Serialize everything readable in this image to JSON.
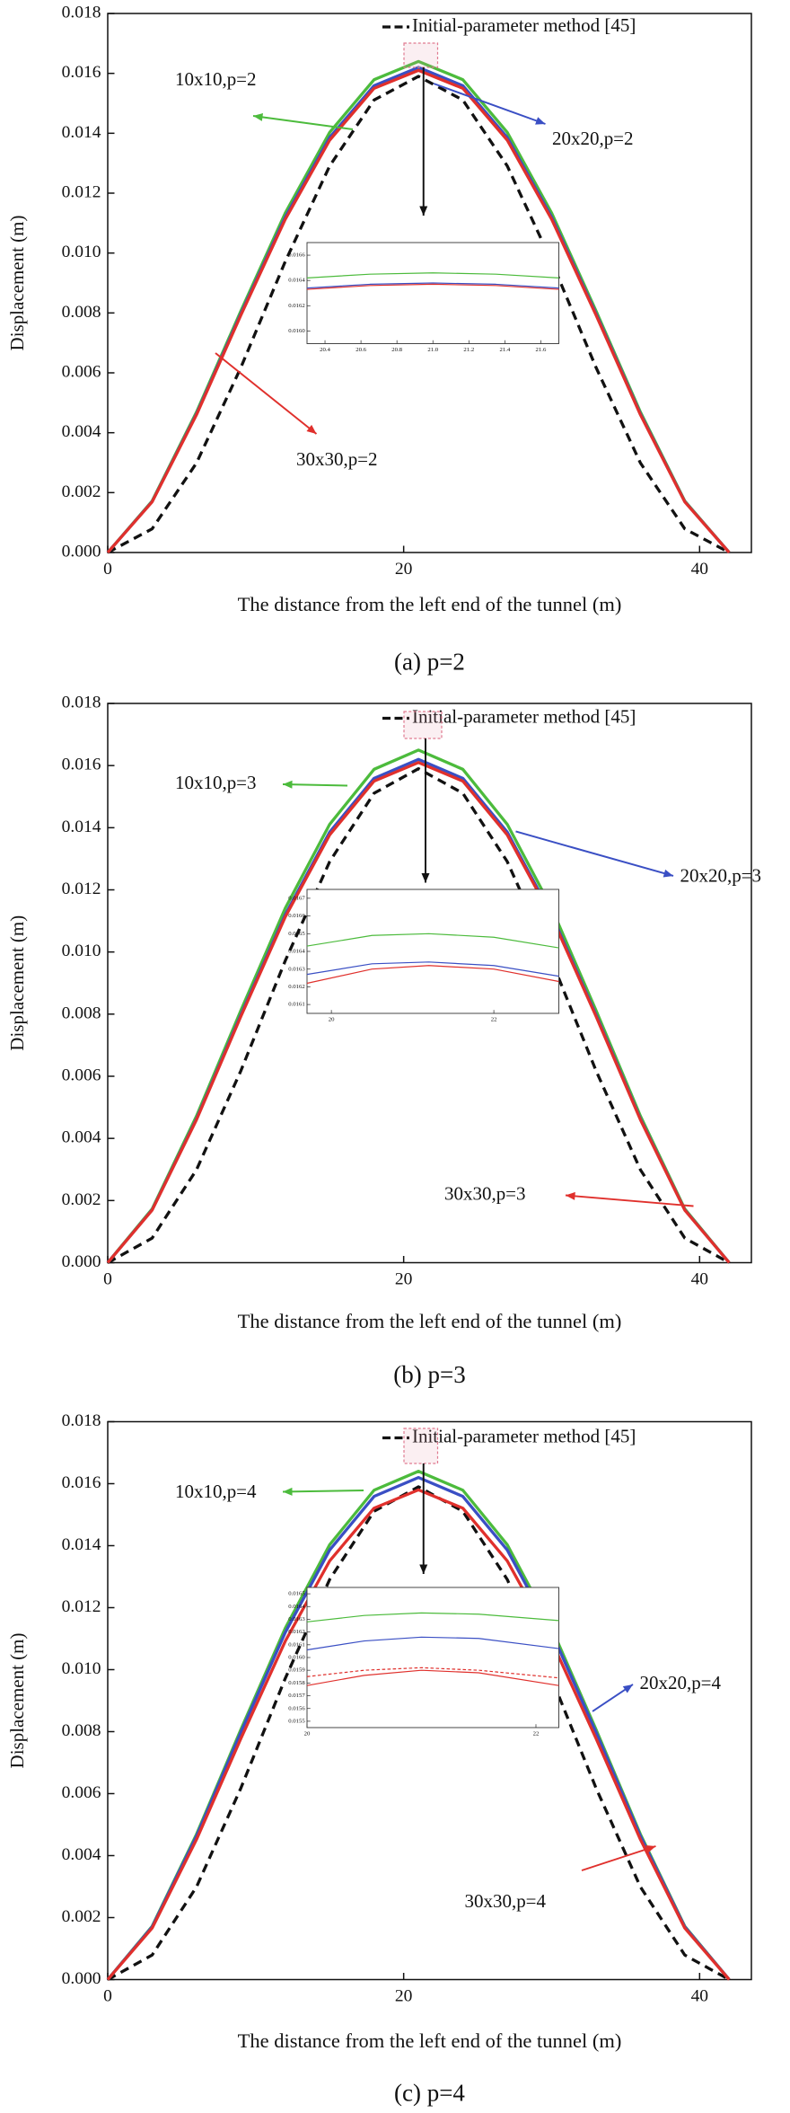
{
  "chart_data": [
    {
      "type": "line",
      "caption": "(a) p=2",
      "x_label": "The distance from the left end of the tunnel (m)",
      "y_label": "Displacement (m)",
      "xlim": [
        0,
        43.5
      ],
      "ylim": [
        0,
        0.018
      ],
      "xticks": [
        0,
        20,
        40
      ],
      "yticks": [
        {
          "value": 0,
          "label": "0.000"
        },
        0.002,
        0.004,
        0.006,
        0.008,
        {
          "value": 0.01,
          "label": "0.010"
        },
        0.012,
        0.014,
        0.016,
        0.018
      ],
      "x": [
        0,
        3,
        6,
        9,
        12,
        15,
        18,
        21,
        24,
        27,
        30,
        33,
        36,
        39,
        42
      ],
      "series": [
        {
          "name": "Initial-parameter method [45]",
          "color": "#111111",
          "line_style": "dashed",
          "values": [
            0,
            0.00079,
            0.00299,
            0.00618,
            0.00972,
            0.01291,
            0.01511,
            0.0159,
            0.01511,
            0.01291,
            0.00972,
            0.00618,
            0.00299,
            0.00079,
            0
          ]
        },
        {
          "name": "10x10,p=2",
          "color": "#4cbb3c",
          "line_style": "solid",
          "values": [
            0,
            0.00172,
            0.00469,
            0.00807,
            0.01134,
            0.01403,
            0.01579,
            0.0164,
            0.01579,
            0.01403,
            0.01134,
            0.00807,
            0.00469,
            0.00172,
            0
          ]
        },
        {
          "name": "20x20,p=2",
          "color": "#3a4fc4",
          "line_style": "solid",
          "values": [
            0,
            0.0017,
            0.00463,
            0.00798,
            0.0112,
            0.01386,
            0.01559,
            0.0162,
            0.01559,
            0.01386,
            0.0112,
            0.00798,
            0.00463,
            0.0017,
            0
          ]
        },
        {
          "name": "30x30,p=2",
          "color": "#e0302c",
          "line_style": "solid",
          "values": [
            0,
            0.00169,
            0.0046,
            0.00793,
            0.01113,
            0.01377,
            0.0155,
            0.0161,
            0.0155,
            0.01377,
            0.01113,
            0.00793,
            0.0046,
            0.00169,
            0
          ]
        }
      ],
      "inset": {
        "xlim": [
          20.3,
          21.7
        ],
        "ylim": [
          0.0159,
          0.0167
        ],
        "xticks": [
          20.4,
          20.6,
          20.8,
          {
            "value": 21,
            "label": "21.0"
          },
          21.2,
          21.4,
          21.6
        ],
        "yticks": [
          {
            "value": 0.016,
            "label": "0.0160"
          },
          0.0162,
          0.0164,
          0.0166
        ],
        "x": [
          20.3,
          20.65,
          21,
          21.35,
          21.7
        ],
        "series": [
          {
            "color": "#4cbb3c",
            "line_style": "solid",
            "values": [
              0.01642,
              0.01645,
              0.01646,
              0.01645,
              0.01642
            ]
          },
          {
            "color": "#3a4fc4",
            "line_style": "solid",
            "values": [
              0.01634,
              0.01637,
              0.01638,
              0.01637,
              0.01634
            ]
          },
          {
            "color": "#e0302c",
            "line_style": "solid",
            "values": [
              0.01633,
              0.01636,
              0.01637,
              0.01636,
              0.01633
            ]
          }
        ]
      }
    },
    {
      "type": "line",
      "caption": "(b) p=3",
      "x_label": "The distance from the left end of the tunnel (m)",
      "y_label": "Displacement (m)",
      "xlim": [
        0,
        43.5
      ],
      "ylim": [
        0,
        0.018
      ],
      "xticks": [
        0,
        20,
        40
      ],
      "yticks": [
        {
          "value": 0,
          "label": "0.000"
        },
        0.002,
        0.004,
        0.006,
        0.008,
        {
          "value": 0.01,
          "label": "0.010"
        },
        0.012,
        0.014,
        0.016,
        0.018
      ],
      "x": [
        0,
        3,
        6,
        9,
        12,
        15,
        18,
        21,
        24,
        27,
        30,
        33,
        36,
        39,
        42
      ],
      "series": [
        {
          "name": "Initial-parameter method [45]",
          "color": "#111111",
          "line_style": "dashed",
          "values": [
            0,
            0.00079,
            0.00299,
            0.00618,
            0.00972,
            0.01291,
            0.01511,
            0.0159,
            0.01511,
            0.01291,
            0.00972,
            0.00618,
            0.00299,
            0.00079,
            0
          ]
        },
        {
          "name": "10x10,p=3",
          "color": "#4cbb3c",
          "line_style": "solid",
          "values": [
            0,
            0.00173,
            0.00472,
            0.00812,
            0.01141,
            0.01411,
            0.01588,
            0.0165,
            0.01588,
            0.01411,
            0.01141,
            0.00812,
            0.00472,
            0.00173,
            0
          ]
        },
        {
          "name": "20x20,p=3",
          "color": "#3a4fc4",
          "line_style": "solid",
          "values": [
            0,
            0.0017,
            0.00463,
            0.00798,
            0.0112,
            0.01386,
            0.01559,
            0.0162,
            0.01559,
            0.01386,
            0.0112,
            0.00798,
            0.00463,
            0.0017,
            0
          ]
        },
        {
          "name": "30x30,p=3",
          "color": "#e0302c",
          "line_style": "solid",
          "values": [
            0,
            0.00169,
            0.0046,
            0.00793,
            0.01113,
            0.01377,
            0.0155,
            0.0161,
            0.0155,
            0.01377,
            0.01113,
            0.00793,
            0.0046,
            0.00169,
            0
          ]
        }
      ],
      "inset": {
        "xlim": [
          19.7,
          22.8
        ],
        "ylim": [
          0.01605,
          0.01675
        ],
        "xticks": [
          20,
          22
        ],
        "yticks": [
          0.0161,
          0.0162,
          0.0163,
          0.0164,
          0.0165,
          0.0166,
          0.0167
        ],
        "x": [
          19.7,
          20.5,
          21.2,
          22,
          22.8
        ],
        "series": [
          {
            "color": "#4cbb3c",
            "line_style": "solid",
            "values": [
              0.01643,
              0.01649,
              0.0165,
              0.01648,
              0.01642
            ]
          },
          {
            "color": "#3a4fc4",
            "line_style": "solid",
            "values": [
              0.01627,
              0.01633,
              0.01634,
              0.01632,
              0.01626
            ]
          },
          {
            "color": "#e0302c",
            "line_style": "solid",
            "values": [
              0.01622,
              0.0163,
              0.01632,
              0.0163,
              0.01623
            ]
          }
        ]
      }
    },
    {
      "type": "line",
      "caption": "(c) p=4",
      "x_label": "The distance from the left end of the tunnel (m)",
      "y_label": "Displacement (m)",
      "xlim": [
        0,
        43.5
      ],
      "ylim": [
        0,
        0.018
      ],
      "xticks": [
        0,
        20,
        40
      ],
      "yticks": [
        {
          "value": 0,
          "label": "0.000"
        },
        0.002,
        0.004,
        0.006,
        0.008,
        {
          "value": 0.01,
          "label": "0.010"
        },
        0.012,
        0.014,
        0.016,
        0.018
      ],
      "x": [
        0,
        3,
        6,
        9,
        12,
        15,
        18,
        21,
        24,
        27,
        30,
        33,
        36,
        39,
        42
      ],
      "series": [
        {
          "name": "Initial-parameter method [45]",
          "color": "#111111",
          "line_style": "dashed",
          "values": [
            0,
            0.00079,
            0.00299,
            0.00618,
            0.00972,
            0.01291,
            0.01511,
            0.0159,
            0.01511,
            0.01291,
            0.00972,
            0.00618,
            0.00299,
            0.00079,
            0
          ]
        },
        {
          "name": "10x10,p=4",
          "color": "#4cbb3c",
          "line_style": "solid",
          "values": [
            0,
            0.00172,
            0.00469,
            0.00807,
            0.01134,
            0.01403,
            0.01579,
            0.0164,
            0.01579,
            0.01403,
            0.01134,
            0.00807,
            0.00469,
            0.00172,
            0
          ]
        },
        {
          "name": "20x20,p=4",
          "color": "#3a4fc4",
          "line_style": "solid",
          "values": [
            0,
            0.0017,
            0.00463,
            0.00798,
            0.0112,
            0.01386,
            0.01559,
            0.0162,
            0.01559,
            0.01386,
            0.0112,
            0.00798,
            0.00463,
            0.0017,
            0
          ]
        },
        {
          "name": "30x30,p=4",
          "color": "#e0302c",
          "line_style": "solid",
          "values": [
            0,
            0.00166,
            0.00452,
            0.00778,
            0.01092,
            0.01351,
            0.01521,
            0.0158,
            0.01521,
            0.01351,
            0.01092,
            0.00778,
            0.00452,
            0.00166,
            0
          ]
        }
      ],
      "inset": {
        "xlim": [
          20,
          22.2
        ],
        "ylim": [
          0.01545,
          0.01655
        ],
        "xticks": [
          20,
          22
        ],
        "yticks": [
          0.0155,
          0.0156,
          0.0157,
          0.0158,
          0.0159,
          {
            "value": 0.016,
            "label": "0.0160"
          },
          0.0161,
          0.0162,
          0.0163,
          0.0164,
          0.0165
        ],
        "x": [
          20,
          20.5,
          21,
          21.5,
          22.2
        ],
        "series": [
          {
            "color": "#4cbb3c",
            "line_style": "solid",
            "values": [
              0.01628,
              0.01633,
              0.01635,
              0.01634,
              0.01629
            ]
          },
          {
            "color": "#3a4fc4",
            "line_style": "solid",
            "values": [
              0.01606,
              0.01613,
              0.01616,
              0.01615,
              0.01607
            ]
          },
          {
            "color": "#e0302c",
            "line_style": "dashed",
            "values": [
              0.01585,
              0.0159,
              0.01592,
              0.0159,
              0.01584
            ]
          },
          {
            "color": "#e0302c",
            "line_style": "solid",
            "values": [
              0.01578,
              0.01586,
              0.0159,
              0.01588,
              0.01578
            ]
          }
        ]
      }
    }
  ]
}
